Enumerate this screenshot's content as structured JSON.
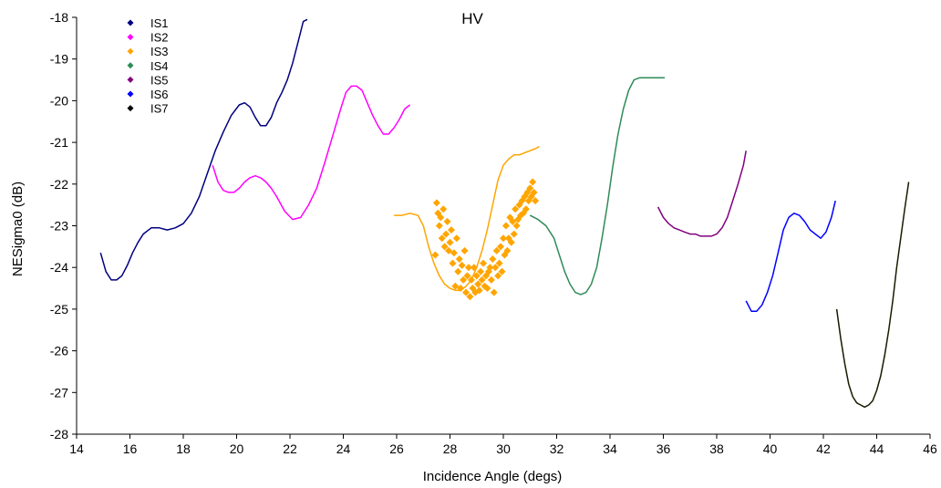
{
  "chart_data": {
    "type": "line",
    "title": "HV",
    "xlabel": "Incidence Angle (degs)",
    "ylabel": "NESigma0 (dB)",
    "xlim": [
      14,
      46
    ],
    "ylim": [
      -28,
      -18
    ],
    "xticks": [
      14,
      16,
      18,
      20,
      22,
      24,
      26,
      28,
      30,
      32,
      34,
      36,
      38,
      40,
      42,
      44,
      46
    ],
    "yticks": [
      -18,
      -19,
      -20,
      -21,
      -22,
      -23,
      -24,
      -25,
      -26,
      -27,
      -28
    ],
    "grid": false,
    "legend_position": "top-left",
    "series": [
      {
        "name": "IS1",
        "color": "#000080",
        "style": "line",
        "x": [
          14.9,
          15.1,
          15.3,
          15.5,
          15.7,
          15.9,
          16.1,
          16.3,
          16.5,
          16.8,
          17.1,
          17.4,
          17.7,
          18.0,
          18.3,
          18.6,
          18.9,
          19.2,
          19.5,
          19.8,
          20.1,
          20.3,
          20.5,
          20.7,
          20.9,
          21.1,
          21.3,
          21.5,
          21.7,
          21.9,
          22.1,
          22.3,
          22.5,
          22.65
        ],
        "y": [
          -23.65,
          -24.1,
          -24.3,
          -24.3,
          -24.2,
          -23.95,
          -23.65,
          -23.4,
          -23.2,
          -23.05,
          -23.05,
          -23.1,
          -23.05,
          -22.95,
          -22.7,
          -22.3,
          -21.75,
          -21.2,
          -20.75,
          -20.35,
          -20.1,
          -20.05,
          -20.15,
          -20.4,
          -20.6,
          -20.6,
          -20.4,
          -20.05,
          -19.8,
          -19.5,
          -19.1,
          -18.6,
          -18.1,
          -18.05
        ]
      },
      {
        "name": "IS2",
        "color": "#ff00ff",
        "style": "line",
        "x": [
          19.1,
          19.3,
          19.5,
          19.7,
          19.9,
          20.1,
          20.3,
          20.5,
          20.7,
          20.9,
          21.1,
          21.3,
          21.5,
          21.8,
          22.1,
          22.4,
          22.7,
          23.0,
          23.3,
          23.6,
          23.9,
          24.1,
          24.3,
          24.5,
          24.7,
          24.9,
          25.1,
          25.3,
          25.5,
          25.7,
          25.9,
          26.1,
          26.3,
          26.5
        ],
        "y": [
          -21.55,
          -21.95,
          -22.15,
          -22.2,
          -22.2,
          -22.1,
          -21.95,
          -21.85,
          -21.8,
          -21.85,
          -21.95,
          -22.1,
          -22.3,
          -22.65,
          -22.85,
          -22.8,
          -22.5,
          -22.1,
          -21.5,
          -20.85,
          -20.2,
          -19.8,
          -19.65,
          -19.65,
          -19.75,
          -20.05,
          -20.35,
          -20.6,
          -20.8,
          -20.8,
          -20.65,
          -20.45,
          -20.2,
          -20.1
        ]
      },
      {
        "name": "IS3",
        "color": "#ffa500",
        "style": "line",
        "x": [
          25.9,
          26.2,
          26.5,
          26.8,
          27.0,
          27.2,
          27.4,
          27.6,
          27.8,
          28.0,
          28.2,
          28.4,
          28.6,
          28.8,
          29.0,
          29.2,
          29.4,
          29.6,
          29.8,
          30.0,
          30.2,
          30.4,
          30.6,
          30.8,
          31.0,
          31.2,
          31.35
        ],
        "y": [
          -22.75,
          -22.75,
          -22.7,
          -22.75,
          -23.0,
          -23.5,
          -23.9,
          -24.2,
          -24.4,
          -24.5,
          -24.55,
          -24.55,
          -24.45,
          -24.3,
          -24.0,
          -23.6,
          -23.1,
          -22.5,
          -21.9,
          -21.55,
          -21.4,
          -21.3,
          -21.3,
          -21.25,
          -21.2,
          -21.15,
          -21.1
        ]
      },
      {
        "name": "IS3",
        "color": "#ffa500",
        "style": "markers",
        "x": [
          27.45,
          27.5,
          27.55,
          27.6,
          27.65,
          27.7,
          27.75,
          27.8,
          27.85,
          27.9,
          27.95,
          28.0,
          28.05,
          28.1,
          28.15,
          28.2,
          28.25,
          28.3,
          28.35,
          28.4,
          28.45,
          28.5,
          28.55,
          28.6,
          28.65,
          28.7,
          28.75,
          28.8,
          28.85,
          28.9,
          28.95,
          29.0,
          29.05,
          29.1,
          29.15,
          29.2,
          29.25,
          29.3,
          29.35,
          29.4,
          29.45,
          29.5,
          29.55,
          29.6,
          29.65,
          29.7,
          29.75,
          29.8,
          29.85,
          29.9,
          29.95,
          30.0,
          30.05,
          30.1,
          30.15,
          30.2,
          30.25,
          30.3,
          30.35,
          30.4,
          30.45,
          30.5,
          30.55,
          30.6,
          30.65,
          30.7,
          30.75,
          30.8,
          30.85,
          30.9,
          30.95,
          31.0,
          31.05,
          31.1,
          31.15,
          31.2
        ],
        "y": [
          -23.7,
          -22.45,
          -22.7,
          -23.0,
          -22.8,
          -23.3,
          -22.6,
          -23.5,
          -23.2,
          -22.9,
          -23.6,
          -23.4,
          -23.1,
          -23.9,
          -23.65,
          -24.45,
          -23.3,
          -24.1,
          -23.8,
          -24.5,
          -23.95,
          -24.3,
          -23.6,
          -24.6,
          -24.2,
          -24.0,
          -24.7,
          -24.3,
          -24.5,
          -24.0,
          -24.6,
          -24.2,
          -24.4,
          -24.55,
          -24.1,
          -24.3,
          -23.9,
          -24.45,
          -24.2,
          -24.5,
          -24.1,
          -24.0,
          -24.3,
          -23.8,
          -24.6,
          -24.0,
          -23.6,
          -24.2,
          -23.9,
          -23.5,
          -24.1,
          -23.3,
          -23.7,
          -23.0,
          -23.6,
          -23.3,
          -22.8,
          -23.4,
          -22.9,
          -23.2,
          -22.6,
          -23.0,
          -22.85,
          -22.5,
          -22.75,
          -22.4,
          -22.7,
          -22.3,
          -22.6,
          -22.2,
          -22.4,
          -22.1,
          -22.3,
          -21.95,
          -22.2,
          -22.4
        ]
      },
      {
        "name": "IS4",
        "color": "#2e8b57",
        "style": "line",
        "x": [
          31.0,
          31.3,
          31.6,
          31.9,
          32.1,
          32.3,
          32.5,
          32.7,
          32.9,
          33.1,
          33.3,
          33.5,
          33.7,
          33.9,
          34.1,
          34.3,
          34.5,
          34.7,
          34.9,
          35.1,
          35.3,
          35.5,
          35.7,
          35.9,
          36.05
        ],
        "y": [
          -22.75,
          -22.85,
          -23.0,
          -23.3,
          -23.7,
          -24.1,
          -24.4,
          -24.6,
          -24.65,
          -24.6,
          -24.4,
          -24.0,
          -23.3,
          -22.5,
          -21.6,
          -20.8,
          -20.2,
          -19.75,
          -19.5,
          -19.45,
          -19.45,
          -19.45,
          -19.45,
          -19.45,
          -19.45
        ]
      },
      {
        "name": "IS5",
        "color": "#800080",
        "style": "line",
        "x": [
          35.8,
          36.0,
          36.2,
          36.4,
          36.6,
          36.8,
          37.0,
          37.2,
          37.4,
          37.6,
          37.8,
          38.0,
          38.2,
          38.4,
          38.6,
          38.8,
          39.0,
          39.1
        ],
        "y": [
          -22.55,
          -22.8,
          -22.95,
          -23.05,
          -23.1,
          -23.15,
          -23.2,
          -23.2,
          -23.25,
          -23.25,
          -23.25,
          -23.2,
          -23.05,
          -22.8,
          -22.4,
          -22.0,
          -21.55,
          -21.2
        ]
      },
      {
        "name": "IS6",
        "color": "#0000ff",
        "style": "line",
        "x": [
          39.1,
          39.3,
          39.5,
          39.7,
          39.9,
          40.1,
          40.3,
          40.5,
          40.7,
          40.9,
          41.1,
          41.3,
          41.5,
          41.7,
          41.9,
          42.1,
          42.3,
          42.45
        ],
        "y": [
          -24.8,
          -25.05,
          -25.05,
          -24.9,
          -24.6,
          -24.2,
          -23.65,
          -23.1,
          -22.8,
          -22.7,
          -22.75,
          -22.9,
          -23.1,
          -23.2,
          -23.3,
          -23.15,
          -22.8,
          -22.4
        ]
      },
      {
        "name": "IS7",
        "color": "#1a1a00",
        "style": "line",
        "x": [
          42.5,
          42.65,
          42.8,
          42.95,
          43.1,
          43.25,
          43.4,
          43.55,
          43.7,
          43.85,
          44.0,
          44.15,
          44.3,
          44.45,
          44.6,
          44.75,
          44.9,
          45.05,
          45.2
        ],
        "y": [
          -25.0,
          -25.7,
          -26.3,
          -26.8,
          -27.1,
          -27.25,
          -27.3,
          -27.35,
          -27.3,
          -27.2,
          -26.95,
          -26.6,
          -26.1,
          -25.5,
          -24.8,
          -24.0,
          -23.3,
          -22.6,
          -21.95
        ]
      }
    ],
    "legend": [
      {
        "label": "IS1",
        "color": "#000080"
      },
      {
        "label": "IS2",
        "color": "#ff00ff"
      },
      {
        "label": "IS3",
        "color": "#ffa500"
      },
      {
        "label": "IS4",
        "color": "#2e8b57"
      },
      {
        "label": "IS5",
        "color": "#800080"
      },
      {
        "label": "IS6",
        "color": "#0000ff"
      },
      {
        "label": "IS7",
        "color": "#000000"
      }
    ]
  }
}
